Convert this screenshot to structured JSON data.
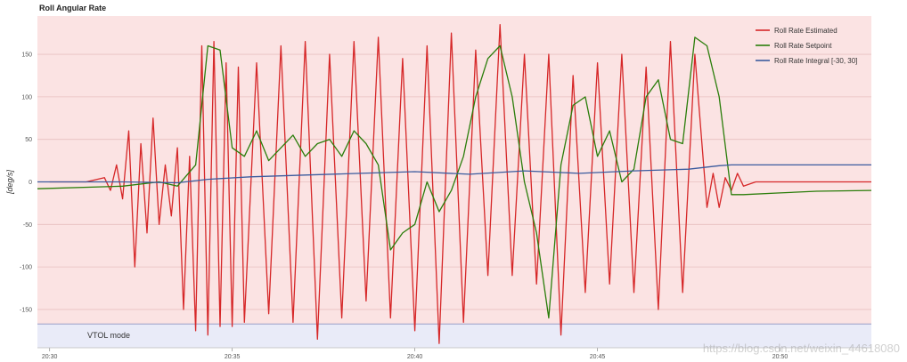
{
  "watermark": "https://blog.csdn.net/weixin_44618080",
  "chart_data": {
    "type": "line",
    "title": "Roll Angular Rate",
    "xlabel": "",
    "ylabel": "[deg/s]",
    "xlim": [
      "20:29:40",
      "20:52:30"
    ],
    "ylim": [
      -195,
      195
    ],
    "xticks": [
      "20:30",
      "20:35",
      "20:40",
      "20:45",
      "20:50"
    ],
    "yticks": [
      -150,
      -100,
      -50,
      0,
      50,
      100,
      150
    ],
    "grid": true,
    "legend_position": "top-right",
    "background": "#fbe3e3",
    "mode_band": {
      "label": "VTOL mode",
      "y_range": [
        -195,
        -167
      ],
      "color": "#e9ebf8"
    },
    "series": [
      {
        "name": "Roll Rate Estimated",
        "color": "#d62728",
        "x": [
          "20:30:00",
          "20:31:00",
          "20:31:30",
          "20:31:40",
          "20:31:50",
          "20:32:00",
          "20:32:10",
          "20:32:20",
          "20:32:30",
          "20:32:40",
          "20:32:50",
          "20:33:00",
          "20:33:10",
          "20:33:20",
          "20:33:30",
          "20:33:40",
          "20:33:50",
          "20:34:00",
          "20:34:10",
          "20:34:20",
          "20:34:30",
          "20:34:40",
          "20:34:50",
          "20:35:00",
          "20:35:10",
          "20:35:20",
          "20:35:40",
          "20:36:00",
          "20:36:20",
          "20:36:40",
          "20:37:00",
          "20:37:20",
          "20:37:40",
          "20:38:00",
          "20:38:20",
          "20:38:40",
          "20:39:00",
          "20:39:20",
          "20:39:40",
          "20:40:00",
          "20:40:20",
          "20:40:40",
          "20:41:00",
          "20:41:20",
          "20:41:40",
          "20:42:00",
          "20:42:20",
          "20:42:40",
          "20:43:00",
          "20:43:20",
          "20:43:40",
          "20:44:00",
          "20:44:20",
          "20:44:40",
          "20:45:00",
          "20:45:20",
          "20:45:40",
          "20:46:00",
          "20:46:20",
          "20:46:40",
          "20:47:00",
          "20:47:20",
          "20:47:40",
          "20:48:00",
          "20:48:10",
          "20:48:20",
          "20:48:30",
          "20:48:40",
          "20:48:50",
          "20:49:00",
          "20:49:20",
          "20:50:00",
          "20:51:00",
          "20:52:30"
        ],
        "y": [
          0,
          0,
          5,
          -10,
          20,
          -20,
          60,
          -100,
          45,
          -60,
          75,
          -50,
          20,
          -40,
          40,
          -150,
          30,
          -175,
          160,
          -180,
          165,
          -170,
          140,
          -170,
          135,
          -165,
          140,
          -155,
          160,
          -165,
          165,
          -185,
          150,
          -160,
          165,
          -140,
          170,
          -160,
          145,
          -175,
          160,
          -190,
          175,
          -165,
          155,
          -110,
          185,
          -110,
          150,
          -120,
          150,
          -180,
          125,
          -130,
          140,
          -120,
          150,
          -130,
          135,
          -150,
          165,
          -130,
          150,
          -30,
          10,
          -30,
          5,
          -10,
          10,
          -5,
          0,
          0,
          0,
          0
        ]
      },
      {
        "name": "Roll Rate Setpoint",
        "color": "#2a7d0a",
        "x": [
          "20:29:40",
          "20:32:00",
          "20:33:00",
          "20:33:30",
          "20:34:00",
          "20:34:20",
          "20:34:40",
          "20:35:00",
          "20:35:20",
          "20:35:40",
          "20:36:00",
          "20:36:20",
          "20:36:40",
          "20:37:00",
          "20:37:20",
          "20:37:40",
          "20:38:00",
          "20:38:20",
          "20:38:40",
          "20:39:00",
          "20:39:20",
          "20:39:40",
          "20:40:00",
          "20:40:20",
          "20:40:40",
          "20:41:00",
          "20:41:20",
          "20:41:40",
          "20:42:00",
          "20:42:20",
          "20:42:40",
          "20:43:00",
          "20:43:20",
          "20:43:40",
          "20:44:00",
          "20:44:20",
          "20:44:40",
          "20:45:00",
          "20:45:20",
          "20:45:40",
          "20:46:00",
          "20:46:20",
          "20:46:40",
          "20:47:00",
          "20:47:20",
          "20:47:40",
          "20:48:00",
          "20:48:20",
          "20:48:40",
          "20:49:00",
          "20:50:00",
          "20:51:00",
          "20:52:30"
        ],
        "y": [
          -8,
          -5,
          0,
          -5,
          20,
          160,
          155,
          40,
          30,
          60,
          25,
          40,
          55,
          30,
          45,
          50,
          30,
          60,
          45,
          20,
          -80,
          -60,
          -50,
          0,
          -35,
          -10,
          30,
          100,
          145,
          160,
          100,
          0,
          -60,
          -160,
          20,
          90,
          100,
          30,
          60,
          0,
          15,
          100,
          120,
          50,
          45,
          170,
          160,
          100,
          -15,
          -15,
          -13,
          -11,
          -10
        ]
      },
      {
        "name": "Roll Rate Integral [-30, 30]",
        "color": "#3b5b9e",
        "x": [
          "20:29:40",
          "20:32:00",
          "20:33:30",
          "20:34:20",
          "20:35:30",
          "20:37:00",
          "20:38:30",
          "20:40:00",
          "20:41:30",
          "20:43:00",
          "20:44:30",
          "20:46:00",
          "20:47:30",
          "20:48:20",
          "20:48:40",
          "20:52:30"
        ],
        "y": [
          0,
          0,
          -1,
          3,
          6,
          8,
          10,
          12,
          9,
          13,
          10,
          13,
          15,
          19,
          20,
          20
        ]
      }
    ]
  }
}
